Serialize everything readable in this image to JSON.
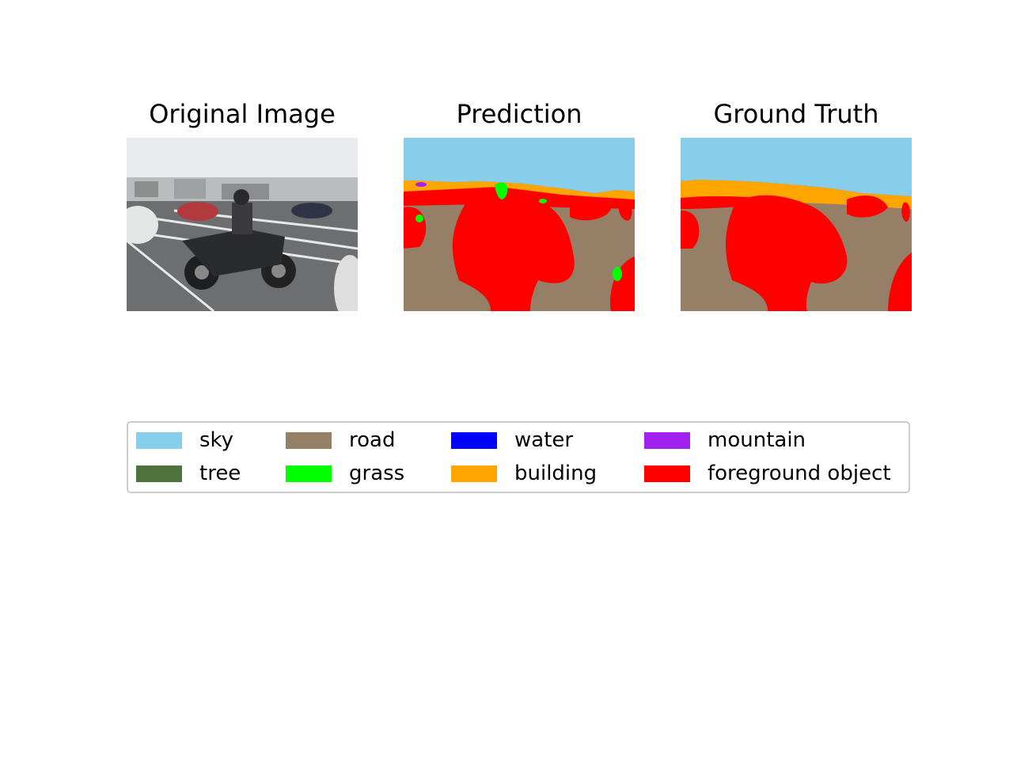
{
  "panels": {
    "original": {
      "title": "Original Image"
    },
    "prediction": {
      "title": "Prediction"
    },
    "ground_truth": {
      "title": "Ground Truth"
    }
  },
  "legend": {
    "items": [
      {
        "label": "sky",
        "color": "#87CEEB"
      },
      {
        "label": "tree",
        "color": "#4E733C"
      },
      {
        "label": "road",
        "color": "#957F66"
      },
      {
        "label": "grass",
        "color": "#00FF00"
      },
      {
        "label": "water",
        "color": "#0000FF"
      },
      {
        "label": "building",
        "color": "#FFA500"
      },
      {
        "label": "mountain",
        "color": "#A020F0"
      },
      {
        "label": "foreground object",
        "color": "#FF0000"
      }
    ]
  }
}
